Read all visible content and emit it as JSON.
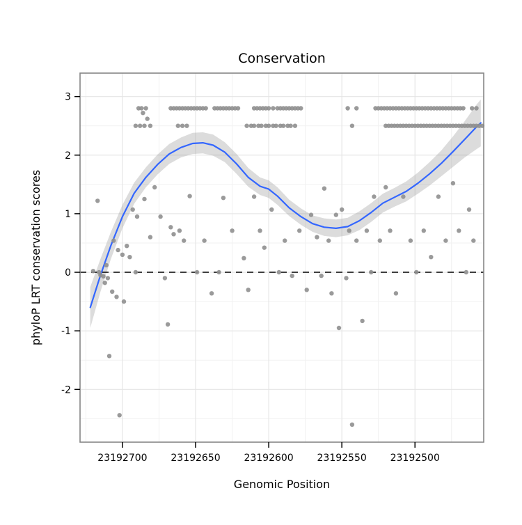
{
  "chart_data": {
    "type": "scatter",
    "title": "Conservation",
    "xlabel": "Genomic Position",
    "ylabel": "phyloP LRT conservation scores",
    "x_reversed": true,
    "xlim": [
      23192453,
      23192729
    ],
    "ylim": [
      -2.9,
      3.4
    ],
    "x_ticks": [
      23192700,
      23192650,
      23192600,
      23192550,
      23192500
    ],
    "x_minor_ticks": [
      23192725,
      23192675,
      23192625,
      23192575,
      23192525,
      23192475
    ],
    "y_ticks": [
      -2,
      -1,
      0,
      1,
      2,
      3
    ],
    "y_minor_ticks": [
      -2.5,
      -1.5,
      -0.5,
      0.5,
      1.5,
      2.5
    ],
    "reference_line_y": 0,
    "colors": {
      "point": "#8f8f8f",
      "smooth_line": "#3366ff",
      "band": "#9c9c9c",
      "band_opacity": 0.35,
      "grid_major": "#e4e4e4",
      "grid_minor": "#f1f1f1",
      "panel_border": "#858585",
      "reference_line": "#000000"
    },
    "stripe_rows": [
      {
        "y": 2.8,
        "x": [
          23192689,
          23192687,
          23192684,
          23192667,
          23192665,
          23192663,
          23192661,
          23192659,
          23192657,
          23192655,
          23192653,
          23192651,
          23192649,
          23192647,
          23192645,
          23192643,
          23192637,
          23192635,
          23192633,
          23192631,
          23192629,
          23192627,
          23192625,
          23192623,
          23192621,
          23192610,
          23192608,
          23192606,
          23192604,
          23192602,
          23192600,
          23192597,
          23192594,
          23192592,
          23192590,
          23192588,
          23192586,
          23192584,
          23192582,
          23192580,
          23192578,
          23192546,
          23192540,
          23192527,
          23192525,
          23192523,
          23192521,
          23192519,
          23192517,
          23192515,
          23192513,
          23192511,
          23192509,
          23192507,
          23192505,
          23192503,
          23192501,
          23192499,
          23192497,
          23192495,
          23192493,
          23192491,
          23192489,
          23192487,
          23192485,
          23192483,
          23192481,
          23192479,
          23192477,
          23192475,
          23192473,
          23192471,
          23192469,
          23192467,
          23192461,
          23192458
        ]
      },
      {
        "y": 2.72,
        "x": [
          23192686
        ]
      },
      {
        "y": 2.62,
        "x": [
          23192683
        ]
      },
      {
        "y": 2.5,
        "x": [
          23192691,
          23192688,
          23192685,
          23192681,
          23192662,
          23192659,
          23192656,
          23192615,
          23192612,
          23192610,
          23192607,
          23192605,
          23192602,
          23192600,
          23192597,
          23192595,
          23192592,
          23192590,
          23192587,
          23192585,
          23192582,
          23192543,
          23192520,
          23192518,
          23192516,
          23192514,
          23192512,
          23192510,
          23192508,
          23192506,
          23192504,
          23192502,
          23192500,
          23192498,
          23192496,
          23192494,
          23192492,
          23192490,
          23192488,
          23192486,
          23192484,
          23192482,
          23192480,
          23192478,
          23192476,
          23192474,
          23192472,
          23192470,
          23192468,
          23192466,
          23192464,
          23192462,
          23192460,
          23192458,
          23192456,
          23192454
        ]
      }
    ],
    "points": [
      [
        23192720,
        0.02
      ],
      [
        23192717,
        1.22
      ],
      [
        23192716,
        0.0
      ],
      [
        23192715,
        -0.05
      ],
      [
        23192713,
        -0.07
      ],
      [
        23192712,
        -0.18
      ],
      [
        23192711,
        0.12
      ],
      [
        23192710,
        -0.1
      ],
      [
        23192709,
        -1.43
      ],
      [
        23192707,
        -0.33
      ],
      [
        23192706,
        0.54
      ],
      [
        23192704,
        -0.42
      ],
      [
        23192703,
        0.38
      ],
      [
        23192702,
        -2.44
      ],
      [
        23192700,
        0.3
      ],
      [
        23192699,
        -0.5
      ],
      [
        23192697,
        0.45
      ],
      [
        23192695,
        0.26
      ],
      [
        23192693,
        1.07
      ],
      [
        23192691,
        0.0
      ],
      [
        23192690,
        0.95
      ],
      [
        23192685,
        1.25
      ],
      [
        23192681,
        0.6
      ],
      [
        23192678,
        1.45
      ],
      [
        23192674,
        0.95
      ],
      [
        23192671,
        -0.1
      ],
      [
        23192669,
        -0.89
      ],
      [
        23192667,
        0.77
      ],
      [
        23192665,
        0.65
      ],
      [
        23192661,
        0.71
      ],
      [
        23192658,
        0.54
      ],
      [
        23192654,
        1.3
      ],
      [
        23192649,
        0.0
      ],
      [
        23192644,
        0.54
      ],
      [
        23192639,
        -0.36
      ],
      [
        23192634,
        0.0
      ],
      [
        23192631,
        1.27
      ],
      [
        23192625,
        0.71
      ],
      [
        23192617,
        0.24
      ],
      [
        23192614,
        -0.3
      ],
      [
        23192610,
        1.29
      ],
      [
        23192606,
        0.71
      ],
      [
        23192603,
        0.42
      ],
      [
        23192598,
        1.07
      ],
      [
        23192593,
        0.0
      ],
      [
        23192589,
        0.54
      ],
      [
        23192584,
        -0.06
      ],
      [
        23192579,
        0.71
      ],
      [
        23192574,
        -0.3
      ],
      [
        23192571,
        0.98
      ],
      [
        23192567,
        0.6
      ],
      [
        23192564,
        -0.06
      ],
      [
        23192562,
        1.43
      ],
      [
        23192559,
        0.54
      ],
      [
        23192557,
        -0.36
      ],
      [
        23192554,
        0.98
      ],
      [
        23192552,
        -0.95
      ],
      [
        23192550,
        1.07
      ],
      [
        23192547,
        -0.1
      ],
      [
        23192545,
        0.71
      ],
      [
        23192543,
        -2.6
      ],
      [
        23192540,
        0.54
      ],
      [
        23192536,
        -0.83
      ],
      [
        23192533,
        0.71
      ],
      [
        23192530,
        0.0
      ],
      [
        23192528,
        1.29
      ],
      [
        23192524,
        0.54
      ],
      [
        23192520,
        1.45
      ],
      [
        23192517,
        0.71
      ],
      [
        23192513,
        -0.36
      ],
      [
        23192508,
        1.29
      ],
      [
        23192503,
        0.54
      ],
      [
        23192499,
        0.0
      ],
      [
        23192494,
        0.71
      ],
      [
        23192489,
        0.26
      ],
      [
        23192484,
        1.29
      ],
      [
        23192479,
        0.54
      ],
      [
        23192474,
        1.52
      ],
      [
        23192470,
        0.71
      ],
      [
        23192465,
        0.0
      ],
      [
        23192463,
        1.07
      ],
      [
        23192460,
        0.54
      ]
    ],
    "smooth": [
      [
        23192722,
        -0.6,
        -0.95,
        -0.25
      ],
      [
        23192715,
        -0.05,
        -0.33,
        0.23
      ],
      [
        23192708,
        0.45,
        0.22,
        0.68
      ],
      [
        23192700,
        0.95,
        0.75,
        1.15
      ],
      [
        23192692,
        1.35,
        1.17,
        1.53
      ],
      [
        23192684,
        1.62,
        1.45,
        1.79
      ],
      [
        23192676,
        1.84,
        1.67,
        2.01
      ],
      [
        23192668,
        2.02,
        1.85,
        2.19
      ],
      [
        23192660,
        2.13,
        1.96,
        2.3
      ],
      [
        23192652,
        2.2,
        2.02,
        2.38
      ],
      [
        23192645,
        2.21,
        2.03,
        2.39
      ],
      [
        23192638,
        2.17,
        1.99,
        2.35
      ],
      [
        23192630,
        2.05,
        1.88,
        2.22
      ],
      [
        23192622,
        1.85,
        1.68,
        2.02
      ],
      [
        23192614,
        1.62,
        1.46,
        1.78
      ],
      [
        23192606,
        1.47,
        1.32,
        1.62
      ],
      [
        23192600,
        1.42,
        1.27,
        1.57
      ],
      [
        23192594,
        1.3,
        1.15,
        1.45
      ],
      [
        23192586,
        1.1,
        0.96,
        1.24
      ],
      [
        23192578,
        0.95,
        0.81,
        1.09
      ],
      [
        23192570,
        0.83,
        0.69,
        0.97
      ],
      [
        23192562,
        0.77,
        0.62,
        0.92
      ],
      [
        23192554,
        0.75,
        0.6,
        0.9
      ],
      [
        23192546,
        0.78,
        0.63,
        0.93
      ],
      [
        23192538,
        0.88,
        0.72,
        1.04
      ],
      [
        23192530,
        1.02,
        0.86,
        1.18
      ],
      [
        23192522,
        1.18,
        1.02,
        1.34
      ],
      [
        23192514,
        1.28,
        1.12,
        1.44
      ],
      [
        23192506,
        1.38,
        1.21,
        1.55
      ],
      [
        23192498,
        1.52,
        1.34,
        1.7
      ],
      [
        23192490,
        1.68,
        1.48,
        1.88
      ],
      [
        23192482,
        1.86,
        1.64,
        2.08
      ],
      [
        23192474,
        2.06,
        1.8,
        2.32
      ],
      [
        23192466,
        2.27,
        1.96,
        2.58
      ],
      [
        23192458,
        2.48,
        2.1,
        2.86
      ],
      [
        23192455,
        2.55,
        2.15,
        2.95
      ]
    ]
  }
}
